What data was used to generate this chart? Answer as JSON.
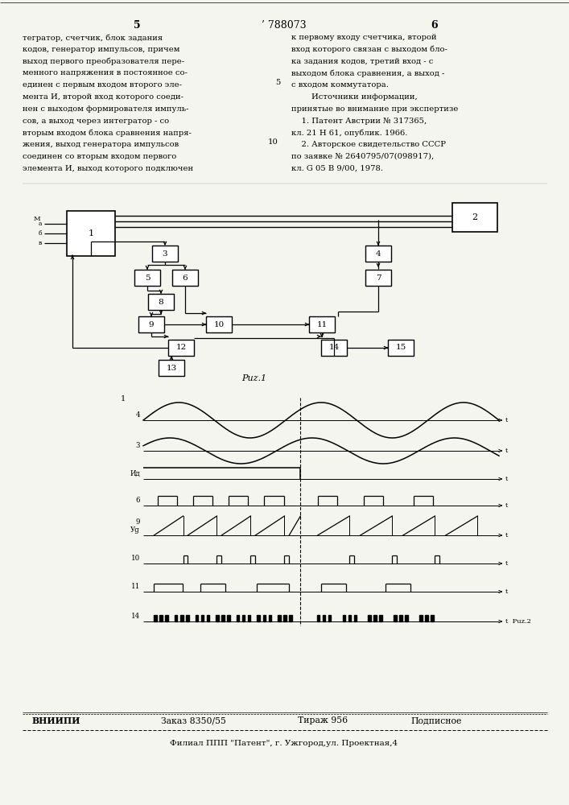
{
  "page_number_left": "5",
  "patent_number": "’ 788073",
  "page_number_right": "6",
  "text_left_lines": [
    "тегратор, счетчик, блок задания",
    "кодов, генератор импульсов, причем",
    "выход первого преобразователя пере-",
    "менного напряжения в постоянное со-",
    "единен с первым входом второго эле-",
    "мента И, второй вход которого соеди-",
    "нен с выходом формирователя импуль-",
    "сов, а выход через интегратор - со",
    "вторым входом блока сравнения напря-",
    "жения, выход генератора импульсов",
    "соединен со вторым входом первого",
    "элемента И, выход которого подключен"
  ],
  "text_right_lines": [
    "к первому входу счетчика, второй",
    "вход которого связан с выходом бло-",
    "ка задания кодов, третий вход - с",
    "выходом блока сравнения, а выход -",
    "с входом коммутатора.",
    "        Источники информации,",
    "принятые во внимание при экспертизе",
    "    1. Патент Австрии № 317365,",
    "кл. 21 Н 61, опублик. 1966.",
    "    2. Авторское свидетельство СССР",
    "по заявке № 2640795/07(098917),",
    "кл. G 05 В 9/00, 1978."
  ],
  "fig1_label": "Рuz.1",
  "fig2_label": "Рuz.2",
  "footer_org": "ВНИИПИ",
  "footer_order": "Заказ 8350/55",
  "footer_copies": "Тираж 956",
  "footer_type": "Подписное",
  "footer_bottom": "Филиал ППП \"Патент\", г. Ужгород,ул. Проектная,4",
  "bg_color": "#f5f5f0"
}
